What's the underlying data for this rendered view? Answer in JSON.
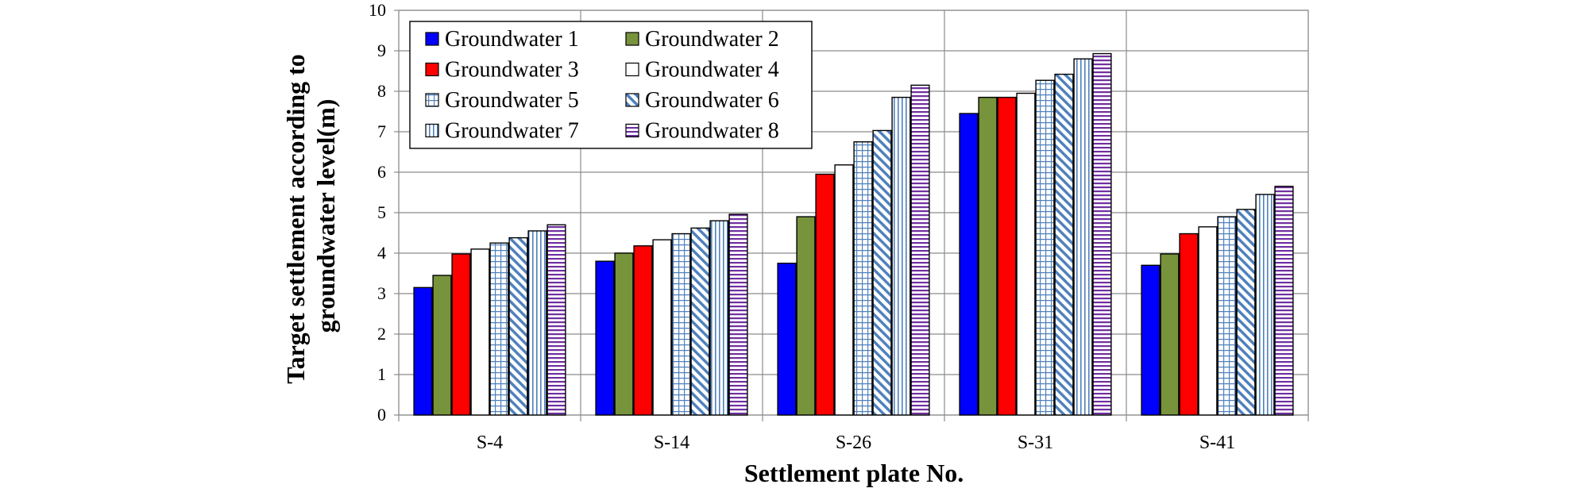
{
  "chart_data": {
    "type": "bar",
    "xlabel": "Settlement plate No.",
    "ylabel_lines": [
      "Target settlement according to",
      "groundwater level(m)"
    ],
    "ylim": [
      0,
      10
    ],
    "yticks": [
      0,
      1,
      2,
      3,
      4,
      5,
      6,
      7,
      8,
      9,
      10
    ],
    "grid": true,
    "legend_position": "top-left",
    "categories": [
      "S-4",
      "S-14",
      "S-26",
      "S-31",
      "S-41"
    ],
    "series": [
      {
        "name": "Groundwater 1",
        "fill": "solid",
        "color": "#0000FF",
        "values": [
          3.15,
          3.8,
          3.75,
          7.45,
          3.7
        ]
      },
      {
        "name": "Groundwater 2",
        "fill": "solid",
        "color": "#77933C",
        "values": [
          3.45,
          4.0,
          4.9,
          7.85,
          3.98
        ]
      },
      {
        "name": "Groundwater 3",
        "fill": "solid",
        "color": "#FF0000",
        "values": [
          3.98,
          4.18,
          5.95,
          7.85,
          4.48
        ]
      },
      {
        "name": "Groundwater 4",
        "fill": "white",
        "color": "#FFFFFF",
        "values": [
          4.1,
          4.33,
          6.18,
          7.95,
          4.65
        ]
      },
      {
        "name": "Groundwater 5",
        "fill": "grid",
        "color": "#4F81BD",
        "values": [
          4.25,
          4.48,
          6.75,
          8.27,
          4.9
        ]
      },
      {
        "name": "Groundwater 6",
        "fill": "diagonal",
        "color": "#4F81BD",
        "values": [
          4.38,
          4.62,
          7.03,
          8.42,
          5.08
        ]
      },
      {
        "name": "Groundwater 7",
        "fill": "vertical",
        "color": "#4F81BD",
        "values": [
          4.55,
          4.8,
          7.85,
          8.8,
          5.45
        ]
      },
      {
        "name": "Groundwater 8",
        "fill": "horizontal",
        "color": "#7030A0",
        "values": [
          4.7,
          4.96,
          8.15,
          8.93,
          5.65
        ]
      }
    ]
  }
}
